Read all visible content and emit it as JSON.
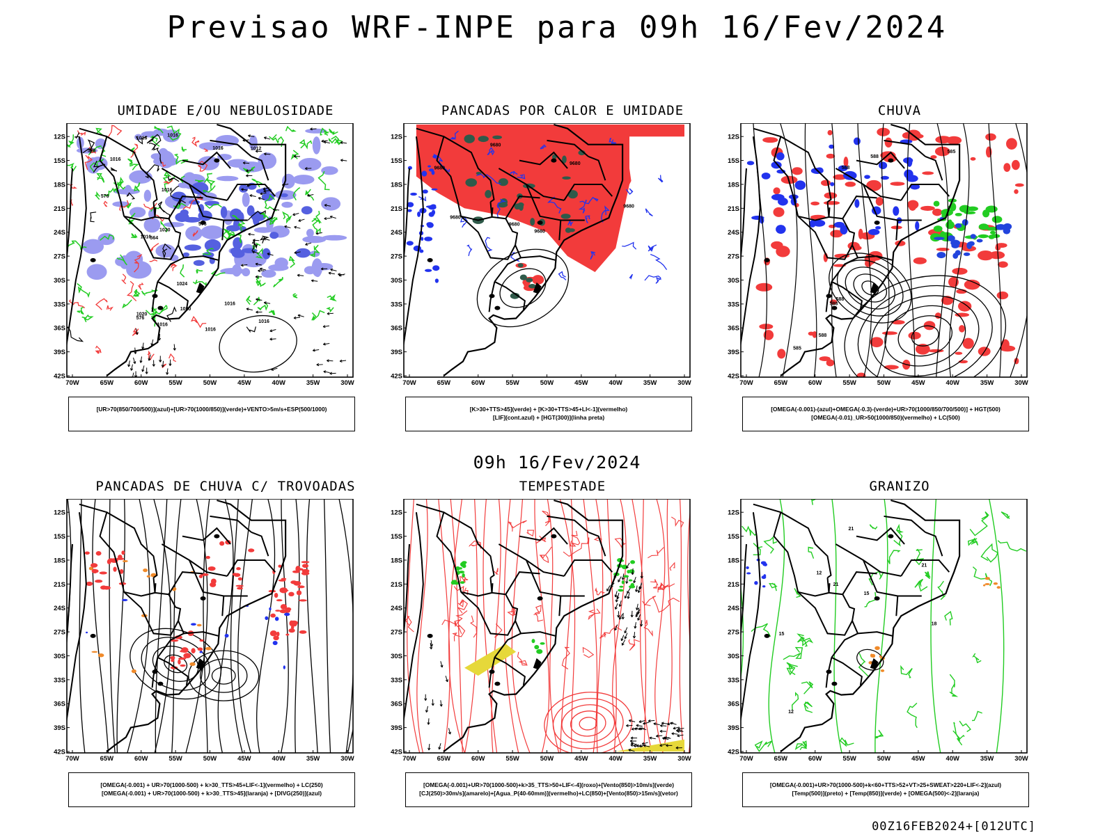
{
  "title": "Previsao WRF-INPE  para 09h 16/Fev/2024",
  "subtitle": "09h 16/Fev/2024",
  "footer": "00Z16FEB2024+[012UTC]",
  "axes": {
    "lat_ticks": [
      "12S",
      "15S",
      "18S",
      "21S",
      "24S",
      "27S",
      "30S",
      "33S",
      "36S",
      "39S",
      "42S"
    ],
    "lon_ticks": [
      "70W",
      "65W",
      "60W",
      "55W",
      "50W",
      "45W",
      "40W",
      "35W",
      "30W"
    ]
  },
  "colors": {
    "red": "#f23b3b",
    "green": "#22cc22",
    "blue": "#2233ee",
    "lavender": "#9b9bf0",
    "darkgreen": "#2f5a4a",
    "orange": "#f08a2a",
    "yellow": "#e6d83a",
    "black": "#000000"
  },
  "panels": [
    {
      "title": "UMIDADE E/OU NEBULOSIDADE",
      "legend": [
        "[UR>70(850/700/500)](azul)+[UR>70(1000/850)](verde)+VENTO>5m/s+ESP(500/1000)"
      ],
      "contour_labels": [
        "1016",
        "1016",
        "1020",
        "1016",
        "1016",
        "1016",
        "1016",
        "1016",
        "1016",
        "1016",
        "1012",
        "1020",
        "1020",
        "1024",
        "1016",
        "576",
        "576",
        "576",
        "564",
        "576"
      ]
    },
    {
      "title": "PANCADAS POR CALOR E UMIDADE",
      "legend": [
        "[K>30+TTS>45](verde) + [K>30+TTS>45+LI<-1](vermelho)",
        "[LIF](cont.azul) + [HGT(300)](linha preta)"
      ],
      "contour_labels": [
        "9680",
        "9680",
        "9680",
        "9680",
        "9680",
        "9680",
        "9680"
      ]
    },
    {
      "title": "CHUVA",
      "legend": [
        "[OMEGA(-0.001)-(azul)+OMEGA(-0.3)-(verde)+UR>70(1000/850/700/500)] + HGT(500)",
        "[OMEGA(-0.01)_UR>50(1000/850)(vermelho) + LC(500)"
      ],
      "contour_labels": [
        "588",
        "588",
        "588",
        "585",
        "588",
        "588",
        "585"
      ]
    },
    {
      "title": "PANCADAS DE CHUVA C/ TROVOADAS",
      "legend": [
        "[OMEGA(-0.001) + UR>70(1000-500) + k>30_TTS>45+LIF<-1](vermelho) + LC(250)",
        "[OMEGA(-0.001) + UR>70(1000-500) + k>30_TTS>45](laranja) + [DIVG(250)](azul)"
      ],
      "contour_labels": []
    },
    {
      "title": "TEMPESTADE",
      "legend": [
        "[OMEGA(-0.001)+UR>70(1000-500)+k>35_TTS>50+LIF<-4](roxo)+[Vento(850)>10m/s](verde)",
        "[CJ(250)>30m/s](amarelo)+[Agua_P(40-60mm)](vermelho)+LC(850)+[Vento(850)>15m/s](vetor)"
      ],
      "contour_labels": []
    },
    {
      "title": "GRANIZO",
      "legend": [
        "[OMEGA(-0.001)+UR>70(1000-500)+k<60+TTS>52+VT>25+SWEAT>220+LIF<-2](azul)",
        "[Temp(500)](preto) + [Temp(850)](verde) + [OMEGA(500)<-2](laranja)"
      ],
      "contour_labels": [
        "21",
        "18",
        "15",
        "12",
        "21",
        "18",
        "15",
        "12",
        "21"
      ]
    }
  ]
}
